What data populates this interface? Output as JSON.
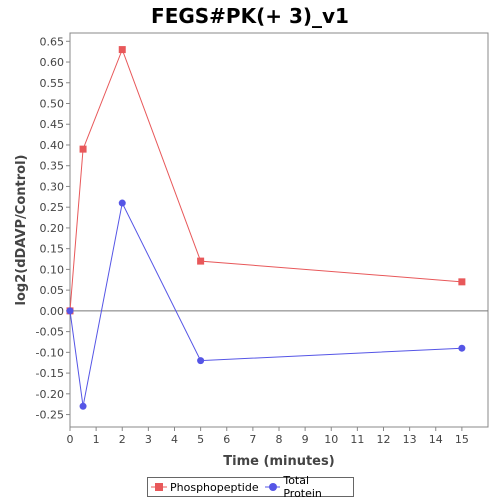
{
  "chart_data": {
    "type": "line",
    "title": "FEGS#PK(+ 3)_v1",
    "xlabel": "Time (minutes)",
    "ylabel": "log2(dDAVP/Control)",
    "xlim": [
      0,
      16
    ],
    "ylim": [
      -0.28,
      0.67
    ],
    "x_ticks": [
      0,
      1,
      2,
      3,
      4,
      5,
      6,
      7,
      8,
      9,
      10,
      11,
      12,
      13,
      14,
      15
    ],
    "y_ticks": [
      -0.25,
      -0.2,
      -0.15,
      -0.1,
      -0.05,
      0.0,
      0.05,
      0.1,
      0.15,
      0.2,
      0.25,
      0.3,
      0.35,
      0.4,
      0.45,
      0.5,
      0.55,
      0.6,
      0.65
    ],
    "grid": false,
    "legend_position": "bottom",
    "series": [
      {
        "name": "Phosphopeptide",
        "color": "#e8585a",
        "marker": "square",
        "x": [
          0,
          0.5,
          2,
          5,
          15
        ],
        "y": [
          0.0,
          0.39,
          0.63,
          0.12,
          0.07
        ]
      },
      {
        "name": "Total Protein",
        "color": "#5555e6",
        "marker": "circle",
        "x": [
          0,
          0.5,
          2,
          5,
          15
        ],
        "y": [
          0.0,
          -0.23,
          0.26,
          -0.12,
          -0.09
        ]
      }
    ]
  }
}
